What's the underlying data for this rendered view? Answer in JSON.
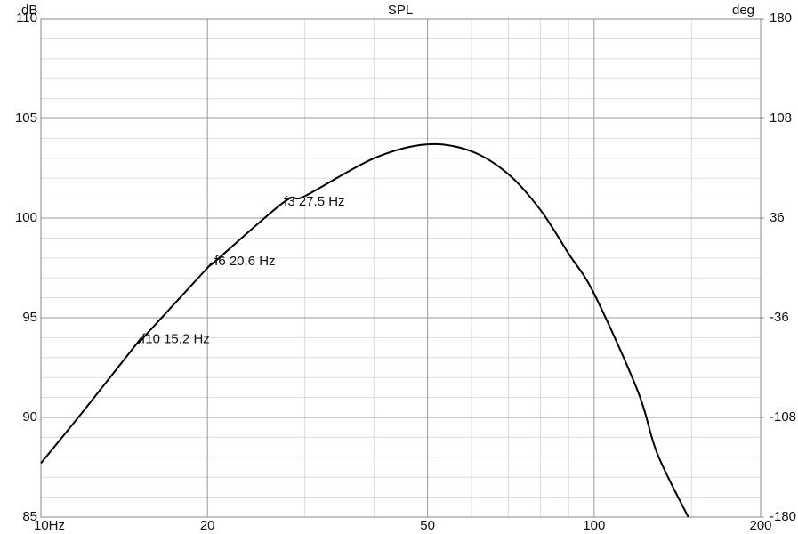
{
  "chart_data": {
    "type": "line",
    "title": "SPL",
    "y_label": "dB",
    "y2_label": "deg",
    "log_x": true,
    "grid": true,
    "xlim": [
      10,
      200
    ],
    "xticks": [
      {
        "value": 10,
        "label": "10Hz"
      },
      20,
      50,
      100,
      200
    ],
    "xminor": [
      30,
      40,
      60,
      70,
      80,
      90,
      150
    ],
    "ylim": [
      85,
      110
    ],
    "yticks": [
      85,
      90,
      95,
      100,
      105,
      110
    ],
    "yminor": [
      86,
      87,
      88,
      89,
      91,
      92,
      93,
      94,
      96,
      97,
      98,
      99,
      101,
      102,
      103,
      104,
      106,
      107,
      108,
      109
    ],
    "y2lim": [
      -180,
      180
    ],
    "y2ticks": [
      -180,
      -108,
      -36,
      36,
      108,
      180
    ],
    "x": [
      10,
      12,
      15,
      15.2,
      20,
      20.6,
      27.5,
      30,
      40,
      50,
      60,
      70,
      80,
      90,
      100,
      120,
      130,
      148
    ],
    "series": [
      {
        "name": "SPL",
        "color": "#000000",
        "values": [
          87.7,
          90.4,
          93.8,
          93.9,
          97.5,
          97.8,
          100.8,
          101.1,
          103.0,
          103.7,
          103.35,
          102.2,
          100.4,
          98.2,
          96.2,
          91.3,
          88.2,
          85
        ]
      }
    ],
    "annotations": [
      {
        "text": "f10 15.2 Hz",
        "x": 15.2,
        "y": 93.9
      },
      {
        "text": "f6 20.6 Hz",
        "x": 20.6,
        "y": 97.8
      },
      {
        "text": "f3 27.5 Hz",
        "x": 27.5,
        "y": 100.8
      }
    ]
  }
}
